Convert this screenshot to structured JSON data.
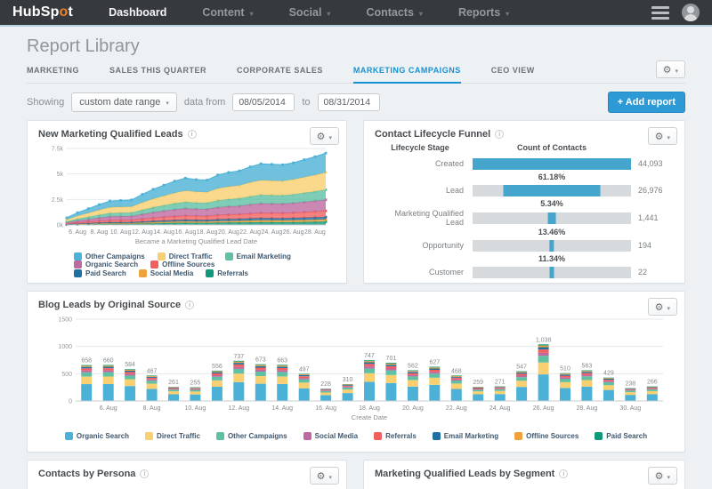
{
  "colors": {
    "navbar_bg": "#363a3e",
    "accent_blue": "#1592d1",
    "add_button_bg": "#2e9ad5",
    "funnel_bar": "#46a5cc",
    "funnel_track": "#d7dadc",
    "palette": [
      "#4cb1d6",
      "#f9d071",
      "#5fc0a4",
      "#bd6aa0",
      "#f1605f",
      "#2071a1",
      "#efa23c",
      "#12997c"
    ]
  },
  "navbar": {
    "logo_pre": "HubSp",
    "logo_o": "o",
    "logo_post": "t",
    "items": [
      {
        "label": "Dashboard",
        "active": true,
        "caret": false
      },
      {
        "label": "Content",
        "active": false,
        "caret": true
      },
      {
        "label": "Social",
        "active": false,
        "caret": true
      },
      {
        "label": "Contacts",
        "active": false,
        "caret": true
      },
      {
        "label": "Reports",
        "active": false,
        "caret": true
      }
    ]
  },
  "page": {
    "title": "Report Library",
    "tabs": [
      {
        "label": "MARKETING",
        "active": false
      },
      {
        "label": "SALES THIS QUARTER",
        "active": false
      },
      {
        "label": "CORPORATE SALES",
        "active": false
      },
      {
        "label": "MARKETING CAMPAIGNS",
        "active": true
      },
      {
        "label": "CEO VIEW",
        "active": false
      }
    ],
    "filters": {
      "showing_label": "Showing",
      "range_value": "custom date range",
      "from_label": "data from",
      "date_from": "08/05/2014",
      "to_label": "to",
      "date_to": "08/31/2014",
      "add_report": "+ Add report"
    }
  },
  "panels": {
    "mql": {
      "title": "New Marketing Qualified Leads"
    },
    "funnel": {
      "title": "Contact Lifecycle Funnel",
      "col_stage": "Lifecycle Stage",
      "col_count": "Count of Contacts",
      "rows": [
        {
          "stage": "Created",
          "count": "44,093",
          "pct": "",
          "fill": 1
        },
        {
          "stage": "Lead",
          "count": "26,976",
          "pct": "61.18%",
          "fill": 0.612
        },
        {
          "stage": "Marketing Qualified Lead",
          "count": "1,441",
          "pct": "5.34%",
          "fill": 0.05
        },
        {
          "stage": "Opportunity",
          "count": "194",
          "pct": "13.46%",
          "fill": 0.03
        },
        {
          "stage": "Customer",
          "count": "22",
          "pct": "11.34%",
          "fill": 0.028
        }
      ]
    },
    "blog": {
      "title": "Blog Leads by Original Source"
    },
    "persona": {
      "title": "Contacts by Persona"
    },
    "segment": {
      "title": "Marketing Qualified Leads by Segment"
    }
  },
  "chart_data": [
    {
      "type": "area",
      "stacked": true,
      "title": "New Marketing Qualified Leads",
      "xlabel": "Became a Marketing Qualified Lead Date",
      "x_days": "Aug 5 - Aug 29, 2014, daily cumulative points",
      "x_ticks": [
        "6. Aug",
        "8. Aug",
        "10. Aug",
        "12. Aug",
        "14. Aug",
        "16. Aug",
        "18. Aug",
        "20. Aug",
        "22. Aug",
        "24. Aug",
        "26. Aug",
        "28. Aug"
      ],
      "y_ticks": [
        "0k",
        "2.5k",
        "5k",
        "7.5k"
      ],
      "y_tick_values": [
        0,
        2500,
        5000,
        7500
      ],
      "ylim": [
        0,
        7500
      ],
      "grid": true,
      "legend_position": "bottom",
      "stack_totals": [
        700,
        1200,
        1600,
        2000,
        2350,
        2400,
        2450,
        3000,
        3500,
        3900,
        4300,
        4600,
        4450,
        4400,
        4900,
        5150,
        5300,
        5700,
        6000,
        5950,
        5900,
        6100,
        6400,
        6700,
        7050
      ],
      "series": [
        {
          "name": "Referrals",
          "color": "#12997c",
          "share_of_total": 0.045
        },
        {
          "name": "Social Media",
          "color": "#efa23c",
          "share_of_total": 0.03
        },
        {
          "name": "Paid Search",
          "color": "#2071a1",
          "share_of_total": 0.035
        },
        {
          "name": "Offline Sources",
          "color": "#f1605f",
          "share_of_total": 0.085
        },
        {
          "name": "Organic Search",
          "color": "#bd6aa0",
          "share_of_total": 0.155
        },
        {
          "name": "Email Marketing",
          "color": "#5fc0a4",
          "share_of_total": 0.14
        },
        {
          "name": "Direct Traffic",
          "color": "#f9d071",
          "share_of_total": 0.24
        },
        {
          "name": "Other Campaigns",
          "color": "#4cb1d6",
          "share_of_total": 0.27
        }
      ],
      "legend_rows": [
        [
          {
            "label": "Other Campaigns",
            "color": "#4cb1d6"
          },
          {
            "label": "Direct Traffic",
            "color": "#f9d071"
          },
          {
            "label": "Email Marketing",
            "color": "#5fc0a4"
          },
          {
            "label": "Organic Search",
            "color": "#bd6aa0"
          },
          {
            "label": "Offline Sources",
            "color": "#f1605f"
          }
        ],
        [
          {
            "label": "Paid Search",
            "color": "#2071a1"
          },
          {
            "label": "Social Media",
            "color": "#efa23c"
          },
          {
            "label": "Referrals",
            "color": "#12997c"
          }
        ]
      ]
    },
    {
      "type": "bar",
      "stacked": true,
      "title": "Blog Leads by Original Source",
      "xlabel": "Create Date",
      "categories": [
        "5. Aug",
        "6. Aug",
        "7. Aug",
        "8. Aug",
        "9. Aug",
        "10. Aug",
        "11. Aug",
        "12. Aug",
        "13. Aug",
        "14. Aug",
        "15. Aug",
        "16. Aug",
        "17. Aug",
        "18. Aug",
        "19. Aug",
        "20. Aug",
        "21. Aug",
        "22. Aug",
        "23. Aug",
        "24. Aug",
        "25. Aug",
        "26. Aug",
        "27. Aug",
        "28. Aug",
        "29. Aug",
        "30. Aug",
        "31. Aug"
      ],
      "values": [
        658,
        660,
        584,
        467,
        261,
        255,
        556,
        737,
        673,
        663,
        497,
        228,
        310,
        747,
        701,
        562,
        627,
        468,
        259,
        271,
        547,
        1038,
        510,
        563,
        429,
        238,
        266
      ],
      "x_ticks": [
        "6. Aug",
        "8. Aug",
        "10. Aug",
        "12. Aug",
        "14. Aug",
        "16. Aug",
        "18. Aug",
        "20. Aug",
        "22. Aug",
        "24. Aug",
        "26. Aug",
        "28. Aug",
        "30. Aug"
      ],
      "y_ticks": [
        "0",
        "500",
        "1000",
        "1500"
      ],
      "y_tick_values": [
        0,
        500,
        1000,
        1500
      ],
      "ylim": [
        0,
        1500
      ],
      "grid": true,
      "legend_position": "bottom",
      "segments": [
        {
          "name": "Organic Search",
          "color": "#4cb1d6",
          "share_of_bar": 0.47
        },
        {
          "name": "Direct Traffic",
          "color": "#f9d071",
          "share_of_bar": 0.21
        },
        {
          "name": "Other Campaigns",
          "color": "#5fc0a4",
          "share_of_bar": 0.12
        },
        {
          "name": "Social Media",
          "color": "#bd6aa0",
          "share_of_bar": 0.05
        },
        {
          "name": "Referrals",
          "color": "#f1605f",
          "share_of_bar": 0.06
        },
        {
          "name": "Email Marketing",
          "color": "#2071a1",
          "share_of_bar": 0.04
        },
        {
          "name": "Offline Sources",
          "color": "#efa23c",
          "share_of_bar": 0.03
        },
        {
          "name": "Paid Search",
          "color": "#12997c",
          "share_of_bar": 0.02
        }
      ],
      "legend": [
        {
          "label": "Organic Search",
          "color": "#4cb1d6"
        },
        {
          "label": "Direct Traffic",
          "color": "#f9d071"
        },
        {
          "label": "Other Campaigns",
          "color": "#5fc0a4"
        },
        {
          "label": "Social Media",
          "color": "#bd6aa0"
        },
        {
          "label": "Referrals",
          "color": "#f1605f"
        },
        {
          "label": "Email Marketing",
          "color": "#2071a1"
        },
        {
          "label": "Offline Sources",
          "color": "#efa23c"
        },
        {
          "label": "Paid Search",
          "color": "#12997c"
        }
      ]
    }
  ]
}
